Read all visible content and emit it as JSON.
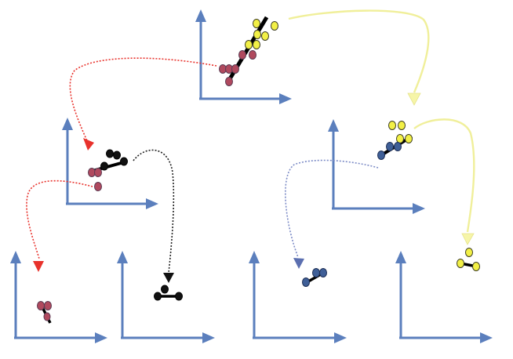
{
  "colors": {
    "axis": "#5b7fbd",
    "red_point": "#b0495e",
    "yellow_point": "#f2f046",
    "blue_point": "#3f5f97",
    "black_point": "#000000",
    "fit_line": "#000000",
    "arrow_red": "#e8322c",
    "arrow_yellow": "#f6f5a8",
    "arrow_black": "#222222",
    "arrow_blue": "#7c8bc6"
  },
  "panels": [
    {
      "id": "root"
    },
    {
      "id": "left-mid"
    },
    {
      "id": "right-mid"
    },
    {
      "id": "leaf-1"
    },
    {
      "id": "leaf-2"
    },
    {
      "id": "leaf-3"
    },
    {
      "id": "leaf-4"
    }
  ],
  "edges": [
    {
      "from": "root",
      "to": "left-mid",
      "color": "red"
    },
    {
      "from": "root",
      "to": "right-mid",
      "color": "yellow"
    },
    {
      "from": "left-mid",
      "to": "leaf-1",
      "color": "red"
    },
    {
      "from": "left-mid",
      "to": "leaf-2",
      "color": "black"
    },
    {
      "from": "right-mid",
      "to": "leaf-3",
      "color": "blue"
    },
    {
      "from": "right-mid",
      "to": "leaf-4",
      "color": "yellow"
    }
  ]
}
